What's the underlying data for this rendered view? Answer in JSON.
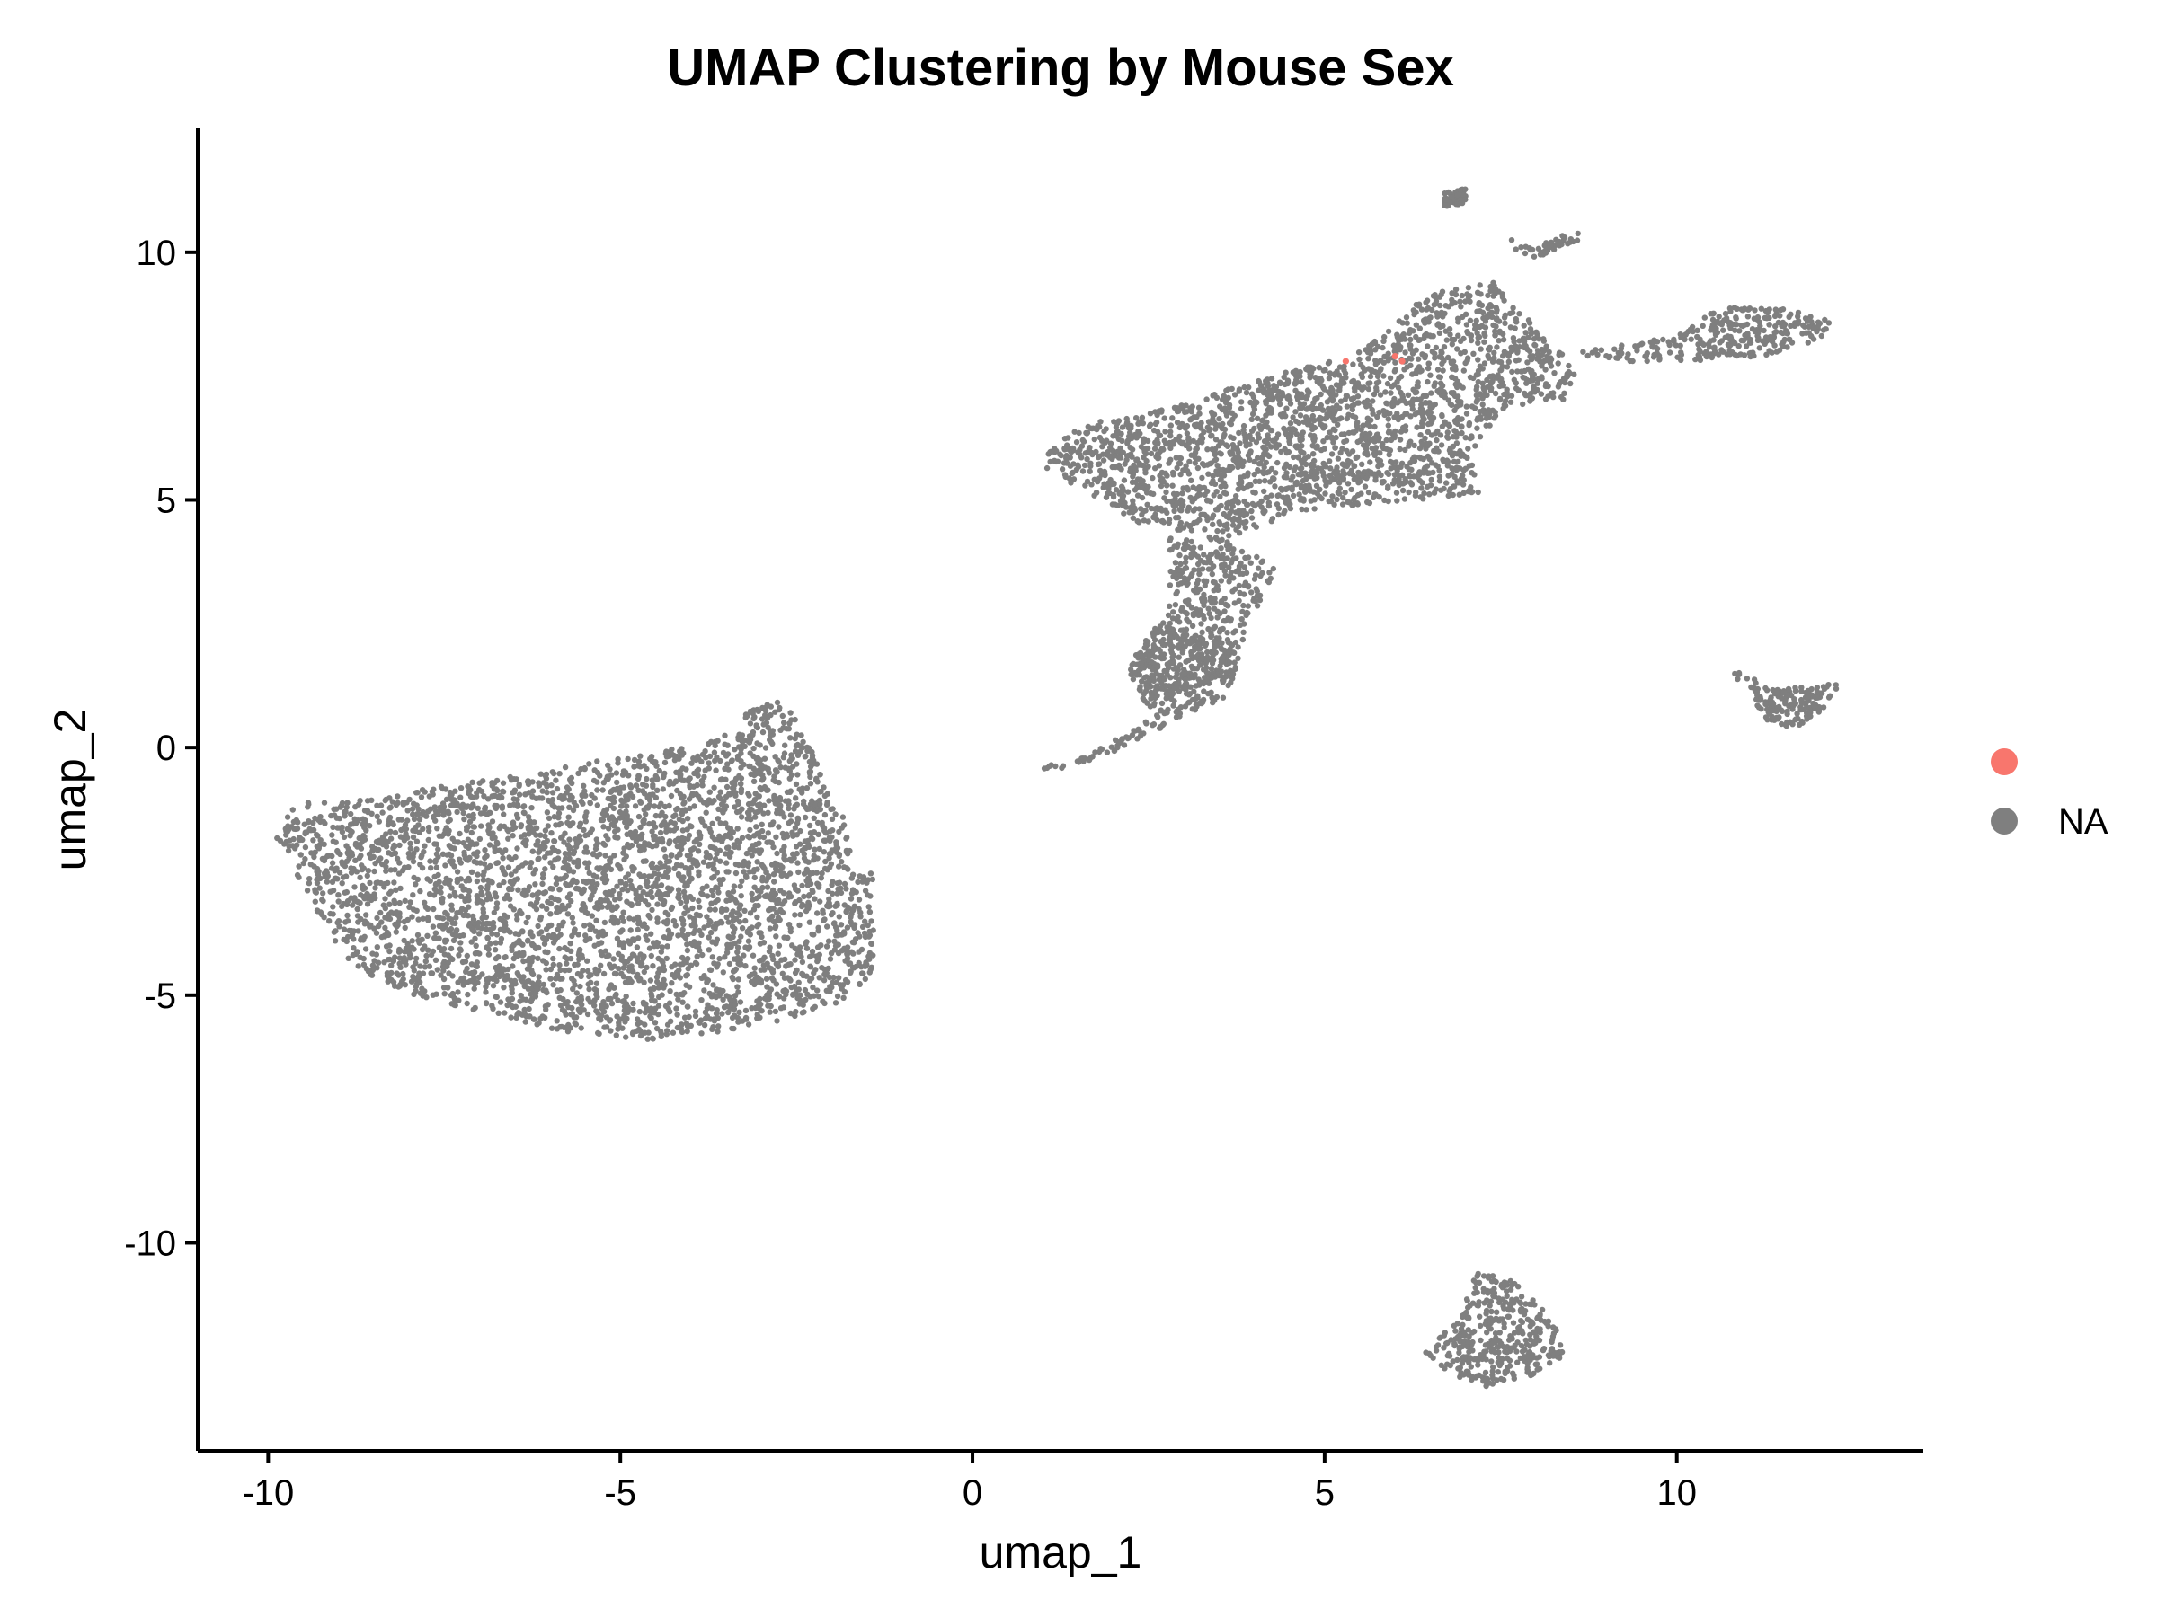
{
  "chart_data": {
    "type": "scatter",
    "title": "UMAP Clustering by Mouse Sex",
    "xlabel": "umap_1",
    "ylabel": "umap_2",
    "xlim": [
      -11,
      13.5
    ],
    "ylim": [
      -14.2,
      12.5
    ],
    "x_ticks": [
      -10,
      -5,
      0,
      5,
      10
    ],
    "x_tick_labels": [
      "-10",
      "-5",
      "0",
      "5",
      "10"
    ],
    "y_ticks": [
      10,
      5,
      0,
      -5,
      -10
    ],
    "y_tick_labels": [
      "10",
      "5",
      "0",
      "-5",
      "-10"
    ],
    "grid": false,
    "legend_position": "right",
    "legend": [
      {
        "label": "",
        "color": "#F8766D"
      },
      {
        "label": "NA",
        "color": "#7F7F7F"
      }
    ],
    "series": [
      {
        "color": "#7F7F7F",
        "clusters": [
          {
            "region": "left cluster",
            "x": [
              -10,
              -1.4
            ],
            "y": [
              -6.0,
              1.1
            ],
            "count": 3800,
            "outline": [
              [
                -9.9,
                -1.8
              ],
              [
                -9.6,
                -1.1
              ],
              [
                -8.4,
                -1.0
              ],
              [
                -7.2,
                -0.7
              ],
              [
                -5.0,
                -0.2
              ],
              [
                -3.8,
                0.1
              ],
              [
                -3.3,
                0.6
              ],
              [
                -2.9,
                1.1
              ],
              [
                -2.5,
                0.6
              ],
              [
                -2.1,
                -0.6
              ],
              [
                -1.7,
                -1.8
              ],
              [
                -1.4,
                -2.5
              ],
              [
                -1.3,
                -3.6
              ],
              [
                -1.4,
                -4.5
              ],
              [
                -1.8,
                -5.1
              ],
              [
                -2.8,
                -5.6
              ],
              [
                -4.5,
                -5.9
              ],
              [
                -5.6,
                -5.8
              ],
              [
                -6.8,
                -5.4
              ],
              [
                -8.2,
                -4.9
              ],
              [
                -8.9,
                -4.3
              ],
              [
                -9.5,
                -2.8
              ]
            ]
          },
          {
            "region": "upper main cluster",
            "x": [
              0.9,
              8.6
            ],
            "y": [
              3.8,
              9.6
            ],
            "count": 2300,
            "outline": [
              [
                0.9,
                5.7
              ],
              [
                1.5,
                6.5
              ],
              [
                2.6,
                6.8
              ],
              [
                4.0,
                7.4
              ],
              [
                5.5,
                8.0
              ],
              [
                6.5,
                9.2
              ],
              [
                7.4,
                9.4
              ],
              [
                8.0,
                8.5
              ],
              [
                8.6,
                7.6
              ],
              [
                8.4,
                7.0
              ],
              [
                7.6,
                6.9
              ],
              [
                7.1,
                6.0
              ],
              [
                7.2,
                5.1
              ],
              [
                6.2,
                5.0
              ],
              [
                4.8,
                4.8
              ],
              [
                3.6,
                4.2
              ],
              [
                2.4,
                4.5
              ],
              [
                1.6,
                5.2
              ]
            ]
          },
          {
            "region": "upper stalk",
            "x": [
              2.2,
              4.3
            ],
            "y": [
              1.0,
              4.5
            ],
            "count": 420,
            "outline": [
              [
                2.8,
                4.3
              ],
              [
                3.6,
                4.3
              ],
              [
                4.3,
                3.6
              ],
              [
                3.9,
                2.4
              ],
              [
                3.7,
                1.4
              ],
              [
                3.1,
                1.0
              ],
              [
                2.4,
                1.2
              ],
              [
                2.3,
                1.9
              ],
              [
                2.7,
                2.6
              ],
              [
                2.8,
                3.4
              ]
            ]
          },
          {
            "region": "lower tail",
            "x": [
              2.2,
              3.8
            ],
            "y": [
              0.5,
              2.6
            ],
            "count": 280,
            "outline": [
              [
                2.2,
                1.6
              ],
              [
                2.6,
                2.4
              ],
              [
                3.4,
                2.4
              ],
              [
                3.8,
                1.8
              ],
              [
                3.6,
                1.0
              ],
              [
                2.9,
                0.6
              ],
              [
                2.4,
                0.9
              ]
            ]
          },
          {
            "region": "left arm",
            "x": [
              0.9,
              2.8
            ],
            "y": [
              -0.5,
              0.9
            ],
            "count": 60,
            "outline": [
              [
                0.9,
                -0.4
              ],
              [
                1.6,
                -0.2
              ],
              [
                2.2,
                0.3
              ],
              [
                2.8,
                0.8
              ],
              [
                2.7,
                0.4
              ],
              [
                2.0,
                -0.1
              ],
              [
                1.2,
                -0.5
              ]
            ]
          },
          {
            "region": "right arm",
            "x": [
              8.6,
              12.3
            ],
            "y": [
              7.8,
              9.1
            ],
            "count": 300,
            "outline": [
              [
                8.6,
                8.0
              ],
              [
                10.0,
                8.3
              ],
              [
                10.6,
                8.9
              ],
              [
                11.5,
                8.9
              ],
              [
                12.3,
                8.6
              ],
              [
                12.2,
                8.3
              ],
              [
                11.2,
                7.9
              ],
              [
                10.2,
                7.8
              ],
              [
                9.2,
                7.6
              ]
            ]
          },
          {
            "region": "top fragments",
            "x": [
              6.7,
              8.7
            ],
            "y": [
              9.8,
              11.3
            ],
            "count": 60,
            "outline": [
              [
                6.7,
                11.2
              ],
              [
                7.0,
                11.3
              ],
              [
                7.0,
                11.0
              ],
              [
                6.7,
                10.9
              ]
            ]
          },
          {
            "region": "top fragments 2",
            "x": [
              7.6,
              8.7
            ],
            "y": [
              9.9,
              10.5
            ],
            "count": 40,
            "outline": [
              [
                7.6,
                10.3
              ],
              [
                8.0,
                10.1
              ],
              [
                8.6,
                10.5
              ],
              [
                8.6,
                10.2
              ],
              [
                8.0,
                9.9
              ],
              [
                7.7,
                10.0
              ]
            ]
          },
          {
            "region": "small right cluster",
            "x": [
              10.7,
              12.3
            ],
            "y": [
              0.4,
              1.6
            ],
            "count": 170,
            "outline": [
              [
                10.7,
                1.6
              ],
              [
                11.5,
                1.2
              ],
              [
                12.3,
                1.3
              ],
              [
                12.2,
                0.9
              ],
              [
                11.7,
                0.4
              ],
              [
                11.3,
                0.5
              ],
              [
                11.0,
                1.1
              ]
            ]
          },
          {
            "region": "bottom cluster",
            "x": [
              6.4,
              8.4
            ],
            "y": [
              -12.9,
              -10.5
            ],
            "count": 380,
            "outline": [
              [
                6.4,
                -12.2
              ],
              [
                6.8,
                -11.7
              ],
              [
                7.2,
                -10.5
              ],
              [
                7.7,
                -10.8
              ],
              [
                8.3,
                -11.6
              ],
              [
                8.4,
                -12.3
              ],
              [
                7.9,
                -12.7
              ],
              [
                7.3,
                -12.9
              ],
              [
                6.7,
                -12.6
              ]
            ]
          }
        ]
      },
      {
        "color": "#F8766D",
        "points": [
          [
            5.3,
            7.8
          ],
          [
            6.0,
            7.9
          ],
          [
            6.1,
            7.8
          ]
        ]
      }
    ]
  }
}
